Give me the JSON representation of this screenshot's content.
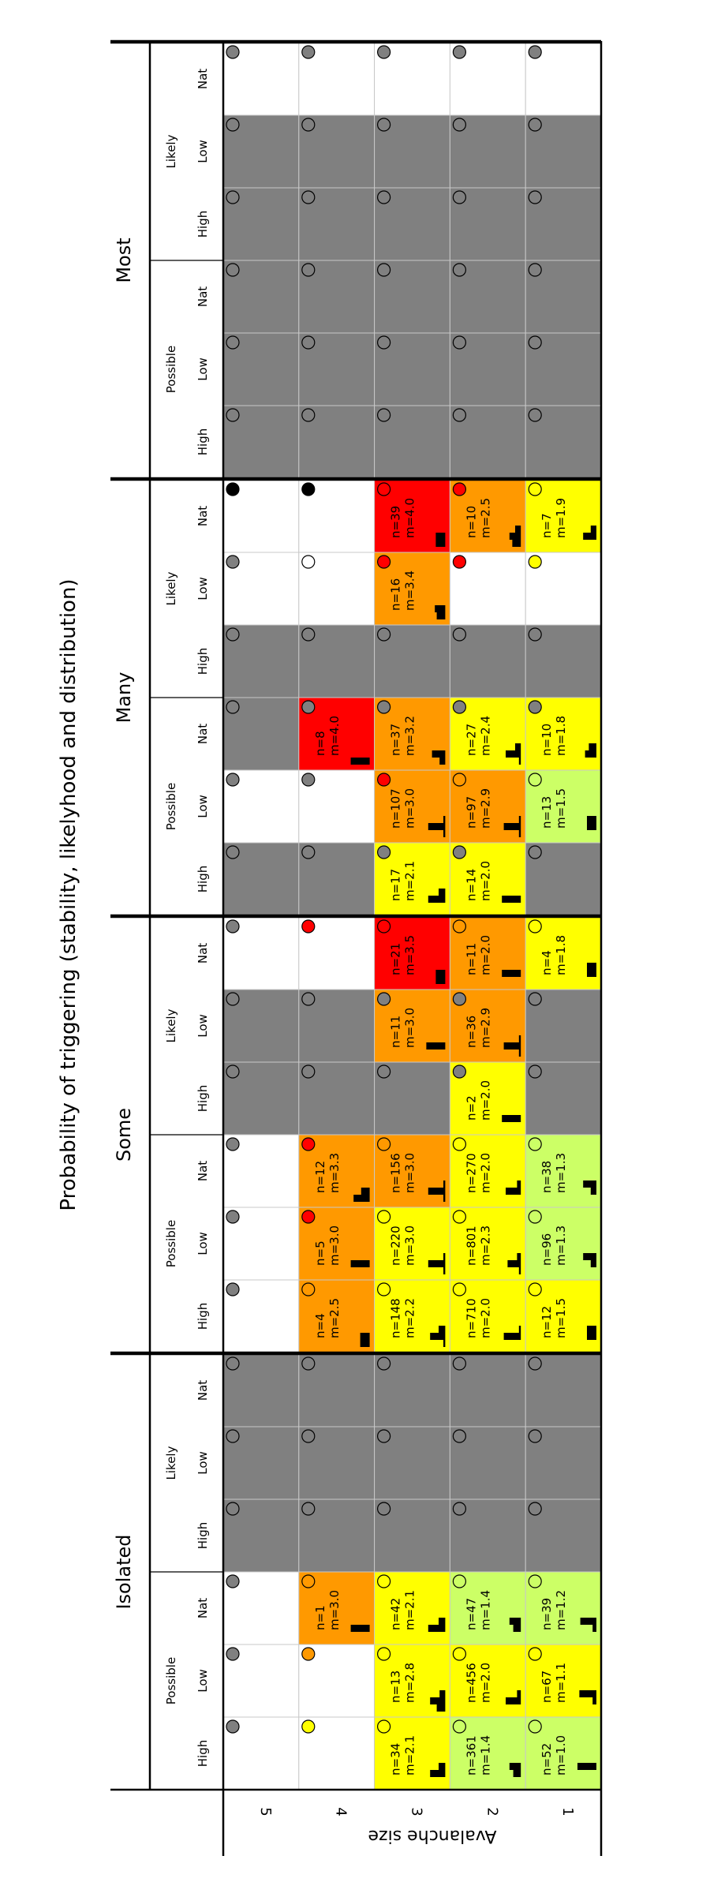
{
  "colors": {
    "gray": "#808080",
    "white": "#ffffff",
    "lightgreen": "#ccff66",
    "yellow": "#ffff00",
    "orange": "#ff9900",
    "red": "#ff0000",
    "circle_gray": "#808080",
    "circle_yellow": "#ffff00",
    "circle_orange": "#ff9900",
    "circle_red": "#ff0000",
    "circle_black": "#000000",
    "circle_empty": "none"
  },
  "chart_data": {
    "type": "heatmap",
    "title": "Probability of triggering (stability, likelyhood and distribution)",
    "ylabel": "Avalanche size",
    "sizes": [
      "5",
      "4",
      "3",
      "2",
      "1"
    ],
    "distribution_labels": [
      "Isolated",
      "Some",
      "Many",
      "Most"
    ],
    "likelihood_labels": [
      "Possible",
      "Likely"
    ],
    "stability_labels": [
      "High",
      "Low",
      "Nat"
    ],
    "cells": [
      [
        [
          {
            "c": "white",
            "k": "circle_gray"
          },
          {
            "c": "white",
            "k": "circle_gray"
          },
          {
            "c": "white",
            "k": "circle_gray"
          },
          {
            "c": "gray",
            "k": "circle_empty"
          },
          {
            "c": "gray",
            "k": "circle_empty"
          },
          {
            "c": "gray",
            "k": "circle_empty"
          }
        ],
        [
          {
            "c": "white",
            "k": "circle_gray"
          },
          {
            "c": "white",
            "k": "circle_gray"
          },
          {
            "c": "white",
            "k": "circle_gray"
          },
          {
            "c": "gray",
            "k": "circle_empty"
          },
          {
            "c": "gray",
            "k": "circle_empty"
          },
          {
            "c": "white",
            "k": "circle_gray"
          }
        ],
        [
          {
            "c": "gray",
            "k": "circle_empty"
          },
          {
            "c": "white",
            "k": "circle_gray"
          },
          {
            "c": "gray",
            "k": "circle_empty"
          },
          {
            "c": "gray",
            "k": "circle_empty"
          },
          {
            "c": "white",
            "k": "circle_gray"
          },
          {
            "c": "white",
            "k": "circle_black"
          }
        ],
        [
          {
            "c": "gray",
            "k": "circle_empty"
          },
          {
            "c": "gray",
            "k": "circle_empty"
          },
          {
            "c": "gray",
            "k": "circle_empty"
          },
          {
            "c": "gray",
            "k": "circle_empty"
          },
          {
            "c": "gray",
            "k": "circle_empty"
          },
          {
            "c": "white",
            "k": "circle_gray"
          }
        ]
      ],
      [
        [
          {
            "c": "white",
            "k": "circle_yellow"
          },
          {
            "c": "white",
            "k": "circle_orange"
          },
          {
            "c": "orange",
            "k": "circle_empty",
            "n": "n=1",
            "m": "m=3.0",
            "h": [
              0,
              1,
              0
            ]
          },
          {
            "c": "gray",
            "k": "circle_empty"
          },
          {
            "c": "gray",
            "k": "circle_empty"
          },
          {
            "c": "gray",
            "k": "circle_empty"
          }
        ],
        [
          {
            "c": "orange",
            "k": "circle_empty",
            "n": "n=4",
            "m": "m=2.5",
            "h": [
              0,
              0.5,
              0.5
            ]
          },
          {
            "c": "orange",
            "k": "circle_red",
            "n": "n=5",
            "m": "m=3.0",
            "h": [
              0,
              1,
              0
            ]
          },
          {
            "c": "orange",
            "k": "circle_red",
            "n": "n=12",
            "m": "m=3.3",
            "h": [
              0,
              0.45,
              0.85
            ]
          },
          {
            "c": "gray",
            "k": "circle_empty"
          },
          {
            "c": "gray",
            "k": "circle_empty"
          },
          {
            "c": "white",
            "k": "circle_red"
          }
        ],
        [
          {
            "c": "gray",
            "k": "circle_empty"
          },
          {
            "c": "white",
            "k": "circle_gray"
          },
          {
            "c": "red",
            "k": "circle_gray",
            "n": "n=8",
            "m": "m=4.0",
            "h": [
              0,
              0,
              1
            ]
          },
          {
            "c": "gray",
            "k": "circle_empty"
          },
          {
            "c": "white",
            "k": "circle_empty"
          },
          {
            "c": "white",
            "k": "circle_black"
          }
        ],
        [
          {
            "c": "gray",
            "k": "circle_empty"
          },
          {
            "c": "gray",
            "k": "circle_empty"
          },
          {
            "c": "gray",
            "k": "circle_empty"
          },
          {
            "c": "gray",
            "k": "circle_empty"
          },
          {
            "c": "gray",
            "k": "circle_empty"
          },
          {
            "c": "white",
            "k": "circle_gray"
          }
        ]
      ],
      [
        [
          {
            "c": "yellow",
            "k": "circle_empty",
            "n": "n=34",
            "m": "m=2.1",
            "h": [
              0.35,
              0.8,
              0
            ]
          },
          {
            "c": "yellow",
            "k": "circle_yellow",
            "n": "n=13",
            "m": "m=2.8",
            "h": [
              0.3,
              0.8,
              0.45
            ]
          },
          {
            "c": "yellow",
            "k": "circle_empty",
            "n": "n=42",
            "m": "m=2.1",
            "h": [
              0.35,
              0.9,
              0
            ]
          },
          {
            "c": "gray",
            "k": "circle_empty"
          },
          {
            "c": "gray",
            "k": "circle_empty"
          },
          {
            "c": "gray",
            "k": "circle_empty"
          }
        ],
        [
          {
            "c": "yellow",
            "k": "circle_empty",
            "n": "n=148",
            "m": "m=2.2",
            "h": [
              0.35,
              0.8,
              0.1
            ]
          },
          {
            "c": "yellow",
            "k": "circle_empty",
            "n": "n=220",
            "m": "m=3.0",
            "h": [
              0.1,
              0.9,
              0.1
            ]
          },
          {
            "c": "orange",
            "k": "circle_empty",
            "n": "n=156",
            "m": "m=3.0",
            "h": [
              0.1,
              0.9,
              0.1
            ]
          },
          {
            "c": "gray",
            "k": "circle_empty"
          },
          {
            "c": "orange",
            "k": "circle_gray",
            "n": "n=11",
            "m": "m=3.0",
            "h": [
              0,
              1,
              0
            ]
          },
          {
            "c": "red",
            "k": "circle_empty",
            "n": "n=21",
            "m": "m=3.5",
            "h": [
              0,
              0.5,
              0.5
            ]
          }
        ],
        [
          {
            "c": "yellow",
            "k": "circle_gray",
            "n": "n=17",
            "m": "m=2.1",
            "h": [
              0.35,
              0.9,
              0
            ]
          },
          {
            "c": "orange",
            "k": "circle_red",
            "n": "n=107",
            "m": "m=3.0",
            "h": [
              0.1,
              0.9,
              0.1
            ]
          },
          {
            "c": "orange",
            "k": "circle_gray",
            "n": "n=37",
            "m": "m=3.2",
            "h": [
              0,
              0.7,
              0.3
            ]
          },
          {
            "c": "gray",
            "k": "circle_empty"
          },
          {
            "c": "orange",
            "k": "circle_red",
            "n": "n=16",
            "m": "m=3.4",
            "h": [
              0,
              0.55,
              0.45
            ]
          },
          {
            "c": "red",
            "k": "circle_empty",
            "n": "n=39",
            "m": "m=4.0",
            "h": [
              0,
              0.5,
              0.5
            ]
          }
        ],
        [
          {
            "c": "gray",
            "k": "circle_empty"
          },
          {
            "c": "gray",
            "k": "circle_empty"
          },
          {
            "c": "gray",
            "k": "circle_empty"
          },
          {
            "c": "gray",
            "k": "circle_empty"
          },
          {
            "c": "gray",
            "k": "circle_empty"
          },
          {
            "c": "white",
            "k": "circle_gray"
          }
        ]
      ],
      [
        [
          {
            "c": "lightgreen",
            "k": "circle_empty",
            "n": "n=361",
            "m": "m=1.4",
            "h": [
              0.6,
              0.4,
              0
            ]
          },
          {
            "c": "yellow",
            "k": "circle_empty",
            "n": "n=456",
            "m": "m=2.0",
            "h": [
              0.2,
              0.8,
              0
            ]
          },
          {
            "c": "lightgreen",
            "k": "circle_empty",
            "n": "n=47",
            "m": "m=1.4",
            "h": [
              0.6,
              0.4,
              0
            ]
          },
          {
            "c": "gray",
            "k": "circle_empty"
          },
          {
            "c": "gray",
            "k": "circle_empty"
          },
          {
            "c": "gray",
            "k": "circle_empty"
          }
        ],
        [
          {
            "c": "yellow",
            "k": "circle_empty",
            "n": "n=710",
            "m": "m=2.0",
            "h": [
              0.1,
              0.9,
              0
            ]
          },
          {
            "c": "yellow",
            "k": "circle_empty",
            "n": "n=801",
            "m": "m=2.3",
            "h": [
              0.2,
              0.7,
              0.1
            ]
          },
          {
            "c": "yellow",
            "k": "circle_empty",
            "n": "n=270",
            "m": "m=2.0",
            "h": [
              0.2,
              0.8,
              0
            ]
          },
          {
            "c": "yellow",
            "k": "circle_gray",
            "n": "n=2",
            "m": "m=2.0",
            "h": [
              0,
              1,
              0
            ]
          },
          {
            "c": "orange",
            "k": "circle_gray",
            "n": "n=36",
            "m": "m=2.9",
            "h": [
              0.1,
              0.9,
              0.1
            ]
          },
          {
            "c": "orange",
            "k": "circle_orange",
            "n": "n=11",
            "m": "m=2.0",
            "h": [
              0,
              1,
              0
            ]
          }
        ],
        [
          {
            "c": "yellow",
            "k": "circle_gray",
            "n": "n=14",
            "m": "m=2.0",
            "h": [
              0,
              1,
              0
            ]
          },
          {
            "c": "orange",
            "k": "circle_empty",
            "n": "n=97",
            "m": "m=2.9",
            "h": [
              0.1,
              0.9,
              0.1
            ]
          },
          {
            "c": "yellow",
            "k": "circle_gray",
            "n": "n=27",
            "m": "m=2.4",
            "h": [
              0.3,
              0.8,
              0.1
            ]
          },
          {
            "c": "gray",
            "k": "circle_empty"
          },
          {
            "c": "white",
            "k": "circle_red"
          },
          {
            "c": "orange",
            "k": "circle_red",
            "n": "n=10",
            "m": "m=2.5",
            "h": [
              0.3,
              0.6,
              0.45
            ]
          }
        ],
        [
          {
            "c": "gray",
            "k": "circle_empty"
          },
          {
            "c": "gray",
            "k": "circle_empty"
          },
          {
            "c": "gray",
            "k": "circle_empty"
          },
          {
            "c": "gray",
            "k": "circle_empty"
          },
          {
            "c": "gray",
            "k": "circle_empty"
          },
          {
            "c": "white",
            "k": "circle_gray"
          }
        ]
      ],
      [
        [
          {
            "c": "lightgreen",
            "k": "circle_empty",
            "n": "n=52",
            "m": "m=1.0",
            "h": [
              1,
              0,
              0
            ]
          },
          {
            "c": "yellow",
            "k": "circle_empty",
            "n": "n=67",
            "m": "m=1.1",
            "h": [
              0.9,
              0.2,
              0
            ]
          },
          {
            "c": "lightgreen",
            "k": "circle_empty",
            "n": "n=39",
            "m": "m=1.2",
            "h": [
              0.85,
              0.2,
              0
            ]
          },
          {
            "c": "gray",
            "k": "circle_empty"
          },
          {
            "c": "gray",
            "k": "circle_empty"
          },
          {
            "c": "gray",
            "k": "circle_empty"
          }
        ],
        [
          {
            "c": "yellow",
            "k": "circle_empty",
            "n": "n=12",
            "m": "m=1.5",
            "h": [
              0.5,
              0.5,
              0
            ]
          },
          {
            "c": "lightgreen",
            "k": "circle_empty",
            "n": "n=96",
            "m": "m=1.3",
            "h": [
              0.7,
              0.3,
              0
            ]
          },
          {
            "c": "lightgreen",
            "k": "circle_empty",
            "n": "n=38",
            "m": "m=1.3",
            "h": [
              0.7,
              0.3,
              0
            ]
          },
          {
            "c": "gray",
            "k": "circle_empty"
          },
          {
            "c": "gray",
            "k": "circle_empty"
          },
          {
            "c": "yellow",
            "k": "circle_empty",
            "n": "n=4",
            "m": "m=1.8",
            "h": [
              0.5,
              0.5,
              0
            ]
          }
        ],
        [
          {
            "c": "gray",
            "k": "circle_empty"
          },
          {
            "c": "lightgreen",
            "k": "circle_empty",
            "n": "n=13",
            "m": "m=1.5",
            "h": [
              0.5,
              0.5,
              0
            ]
          },
          {
            "c": "yellow",
            "k": "circle_gray",
            "n": "n=10",
            "m": "m=1.8",
            "h": [
              0.4,
              0.6,
              0
            ]
          },
          {
            "c": "gray",
            "k": "circle_empty"
          },
          {
            "c": "white",
            "k": "circle_yellow"
          },
          {
            "c": "yellow",
            "k": "circle_empty",
            "n": "n=7",
            "m": "m=1.9",
            "h": [
              0.3,
              0.7,
              0
            ]
          }
        ],
        [
          {
            "c": "gray",
            "k": "circle_empty"
          },
          {
            "c": "gray",
            "k": "circle_empty"
          },
          {
            "c": "gray",
            "k": "circle_empty"
          },
          {
            "c": "gray",
            "k": "circle_empty"
          },
          {
            "c": "gray",
            "k": "circle_empty"
          },
          {
            "c": "white",
            "k": "circle_gray"
          }
        ]
      ]
    ]
  }
}
